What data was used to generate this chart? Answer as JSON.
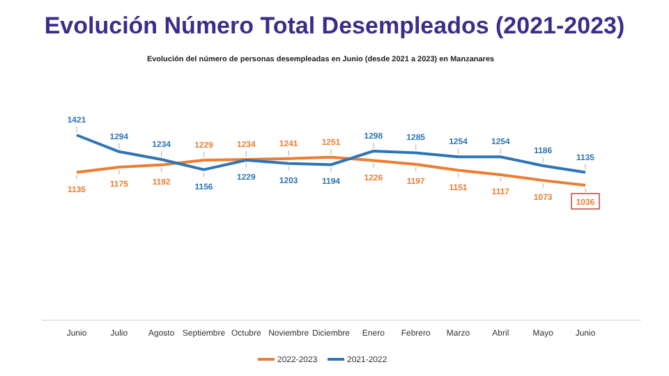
{
  "chart_data": {
    "type": "line",
    "title": "Evolución Número Total Desempleados (2021-2023)",
    "subtitle": "Evolución del número de personas desempleadas en Junio (desde 2021 a 2023) en Manzanares",
    "categories": [
      "Junio",
      "Julio",
      "Agosto",
      "Septiembre",
      "Octubre",
      "Noviembre",
      "Diciembre",
      "Enero",
      "Febrero",
      "Marzo",
      "Abril",
      "Mayo",
      "Junio"
    ],
    "series": [
      {
        "name": "2022-2023",
        "color": "#ed7d31",
        "values": [
          1135,
          1175,
          1192,
          1229,
          1234,
          1241,
          1251,
          1226,
          1197,
          1151,
          1117,
          1073,
          1036
        ]
      },
      {
        "name": "2021-2022",
        "color": "#2e75b6",
        "values": [
          1421,
          1294,
          1234,
          1156,
          1229,
          1203,
          1194,
          1298,
          1285,
          1254,
          1254,
          1186,
          1135
        ]
      }
    ],
    "tick_labels": "x",
    "data_labels": true,
    "legend": "bottom",
    "grid": false,
    "marker": "none",
    "line_style": "solid"
  }
}
